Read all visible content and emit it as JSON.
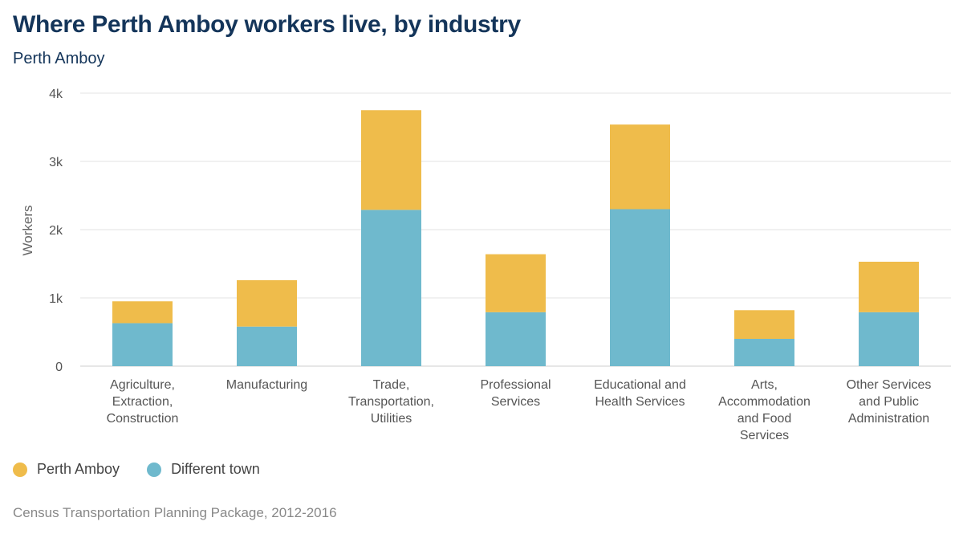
{
  "header": {
    "title": "Where Perth Amboy workers live, by industry",
    "subtitle": "Perth Amboy"
  },
  "colors": {
    "perth_amboy": "#efbc4b",
    "different_town": "#6fb9cd",
    "grid": "#e3e3e3"
  },
  "legend": {
    "items": [
      {
        "label": "Perth Amboy",
        "color": "#efbc4b"
      },
      {
        "label": "Different town",
        "color": "#6fb9cd"
      }
    ]
  },
  "footer": {
    "source": "Census Transportation Planning Package, 2012-2016"
  },
  "chart_data": {
    "type": "bar",
    "stacked": true,
    "title": "Where Perth Amboy workers live, by industry",
    "subtitle": "Perth Amboy",
    "xlabel": "",
    "ylabel": "Workers",
    "ylim": [
      0,
      4000
    ],
    "yticks": [
      {
        "value": 0,
        "label": "0"
      },
      {
        "value": 1000,
        "label": "1k"
      },
      {
        "value": 2000,
        "label": "2k"
      },
      {
        "value": 3000,
        "label": "3k"
      },
      {
        "value": 4000,
        "label": "4k"
      }
    ],
    "categories": [
      [
        "Agriculture,",
        "Extraction,",
        "Construction"
      ],
      [
        "Manufacturing"
      ],
      [
        "Trade,",
        "Transportation,",
        "Utilities"
      ],
      [
        "Professional",
        "Services"
      ],
      [
        "Educational and",
        "Health Services"
      ],
      [
        "Arts,",
        "Accommodation",
        "and Food",
        "Services"
      ],
      [
        "Other Services",
        "and Public",
        "Administration"
      ]
    ],
    "series": [
      {
        "name": "Different town",
        "color": "#6fb9cd",
        "values": [
          630,
          580,
          2290,
          790,
          2300,
          400,
          790
        ]
      },
      {
        "name": "Perth Amboy",
        "color": "#efbc4b",
        "values": [
          320,
          680,
          1460,
          850,
          1240,
          420,
          740
        ]
      }
    ],
    "legend_position": "bottom-left",
    "grid": true
  }
}
